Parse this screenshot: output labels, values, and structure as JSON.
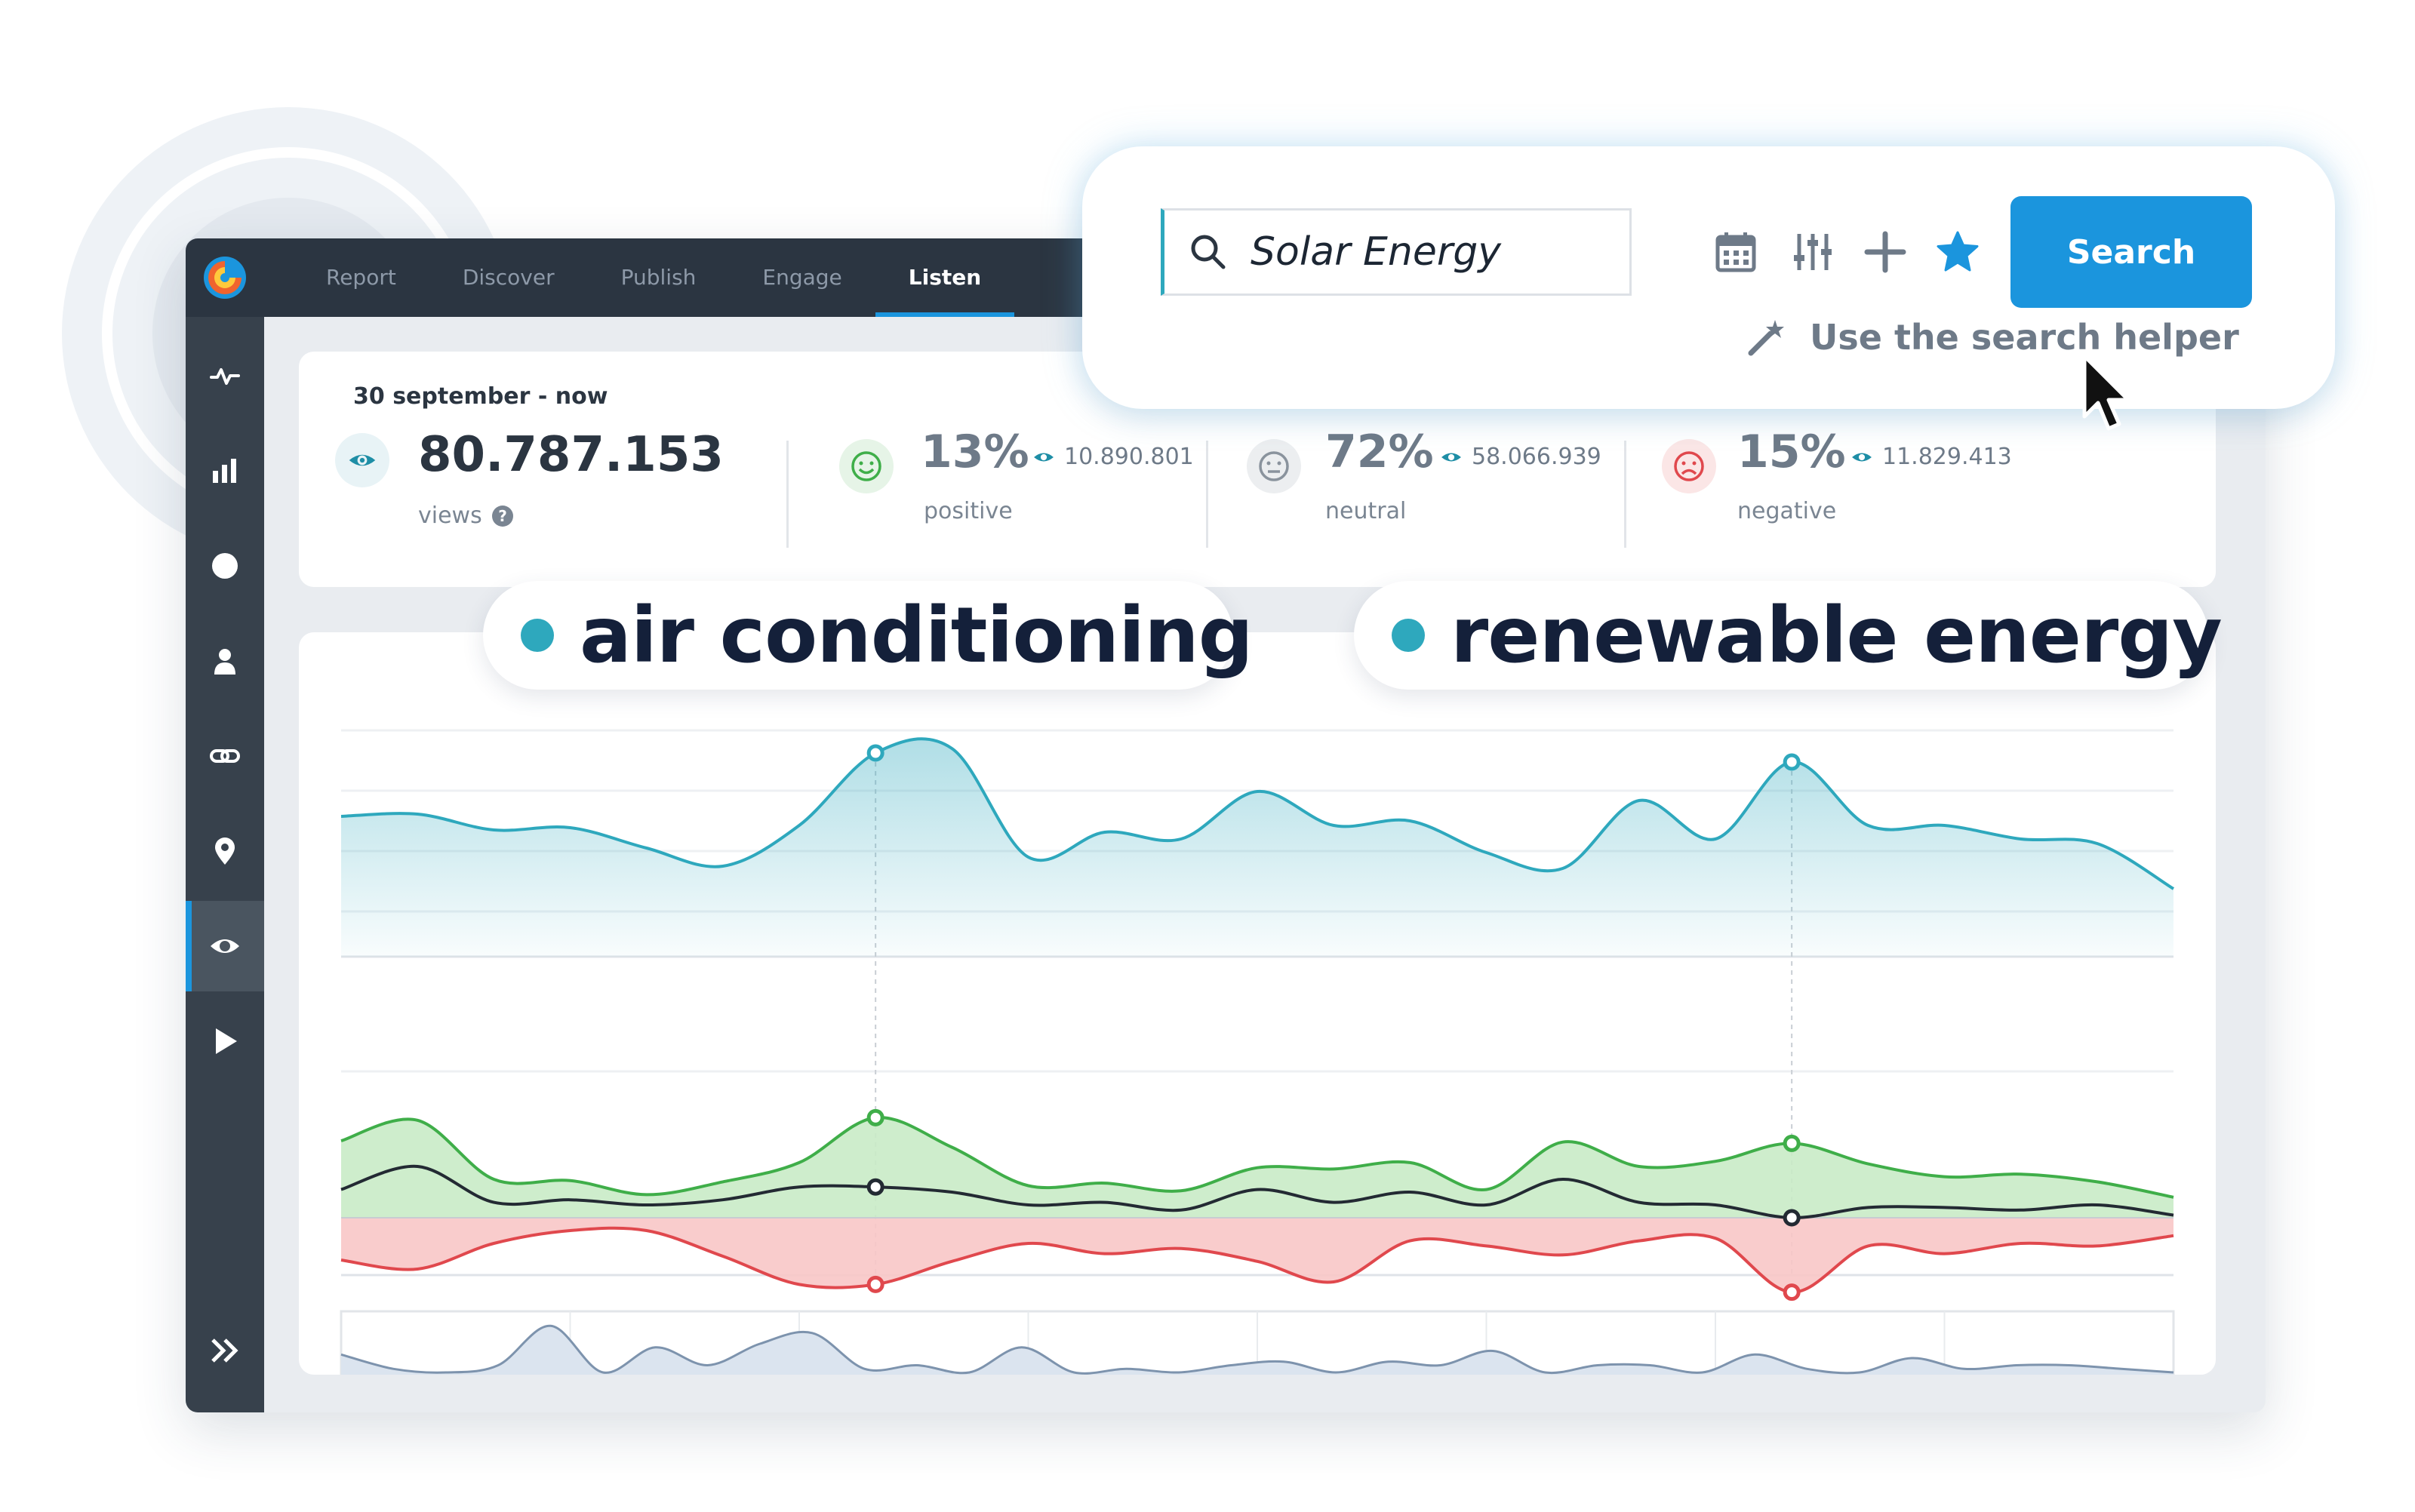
{
  "colors": {
    "accent": "#1b95dd",
    "teal": "#2ea8bd",
    "topbar": "#2b3541",
    "sidebar": "#37414c",
    "positive": "#3fae49",
    "negative": "#e0484d",
    "dark_text": "#14203a"
  },
  "nav": {
    "tabs": [
      {
        "label": "Report"
      },
      {
        "label": "Discover"
      },
      {
        "label": "Publish"
      },
      {
        "label": "Engage"
      },
      {
        "label": "Listen",
        "active": true
      }
    ]
  },
  "sidebar": {
    "items": [
      {
        "icon": "activity-icon"
      },
      {
        "icon": "bar-chart-icon"
      },
      {
        "icon": "circle-icon"
      },
      {
        "icon": "user-icon"
      },
      {
        "icon": "link-icon"
      },
      {
        "icon": "location-pin-icon"
      },
      {
        "icon": "eye-icon",
        "active": true
      },
      {
        "icon": "play-icon"
      }
    ],
    "expand_icon": "double-chevron-right-icon"
  },
  "stats": {
    "date_range": "30 september - now",
    "views": {
      "value": "80.787.153",
      "label": "views"
    },
    "positive": {
      "percent": "13%",
      "count": "10.890.801",
      "label": "positive"
    },
    "neutral": {
      "percent": "72%",
      "count": "58.066.939",
      "label": "neutral"
    },
    "negative": {
      "percent": "15%",
      "count": "11.829.413",
      "label": "negative"
    }
  },
  "topics": [
    {
      "label": "air conditioning",
      "color": "#2ea8bd"
    },
    {
      "label": "renewable energy",
      "color": "#2ea8bd"
    }
  ],
  "search": {
    "query": "Solar Energy",
    "button_label": "Search",
    "helper_label": "Use the search helper",
    "tools": [
      "calendar-icon",
      "sliders-icon",
      "plus-icon",
      "star-icon"
    ]
  },
  "chart_data": [
    {
      "type": "area",
      "series": [
        {
          "values": [
            0.62,
            0.63,
            0.56,
            0.57,
            0.48,
            0.4,
            0.58,
            0.9,
            0.92,
            0.44,
            0.55,
            0.52,
            0.73,
            0.58,
            0.6,
            0.46,
            0.39,
            0.69,
            0.52,
            0.86,
            0.58,
            0.58,
            0.52,
            0.5,
            0.3
          ]
        }
      ]
    },
    {
      "type": "area",
      "series": [
        {
          "name": "positive",
          "values": [
            0.6,
            0.76,
            0.3,
            0.29,
            0.18,
            0.28,
            0.43,
            0.78,
            0.55,
            0.25,
            0.27,
            0.21,
            0.39,
            0.38,
            0.43,
            0.22,
            0.59,
            0.4,
            0.44,
            0.58,
            0.42,
            0.32,
            0.34,
            0.28,
            0.16
          ]
        },
        {
          "name": "neutral",
          "values": [
            0.22,
            0.4,
            0.12,
            0.14,
            0.1,
            0.14,
            0.24,
            0.24,
            0.2,
            0.1,
            0.12,
            0.06,
            0.22,
            0.12,
            0.2,
            0.1,
            0.3,
            0.12,
            0.1,
            0.0,
            0.08,
            0.08,
            0.06,
            0.1,
            0.02
          ]
        },
        {
          "name": "negative",
          "values": [
            -0.33,
            -0.4,
            -0.2,
            -0.1,
            -0.1,
            -0.3,
            -0.52,
            -0.52,
            -0.34,
            -0.2,
            -0.28,
            -0.24,
            -0.34,
            -0.5,
            -0.18,
            -0.22,
            -0.29,
            -0.18,
            -0.16,
            -0.58,
            -0.22,
            -0.28,
            -0.2,
            -0.22,
            -0.14
          ]
        }
      ]
    },
    {
      "type": "area",
      "series": [
        {
          "values": [
            0.45,
            0.25,
            0.2,
            0.3,
            0.85,
            0.2,
            0.55,
            0.3,
            0.6,
            0.75,
            0.25,
            0.3,
            0.2,
            0.55,
            0.2,
            0.25,
            0.2,
            0.3,
            0.35,
            0.2,
            0.35,
            0.3,
            0.5,
            0.2,
            0.3,
            0.3,
            0.2,
            0.45,
            0.25,
            0.2,
            0.4,
            0.25,
            0.3,
            0.3,
            0.25,
            0.2
          ]
        }
      ]
    }
  ]
}
